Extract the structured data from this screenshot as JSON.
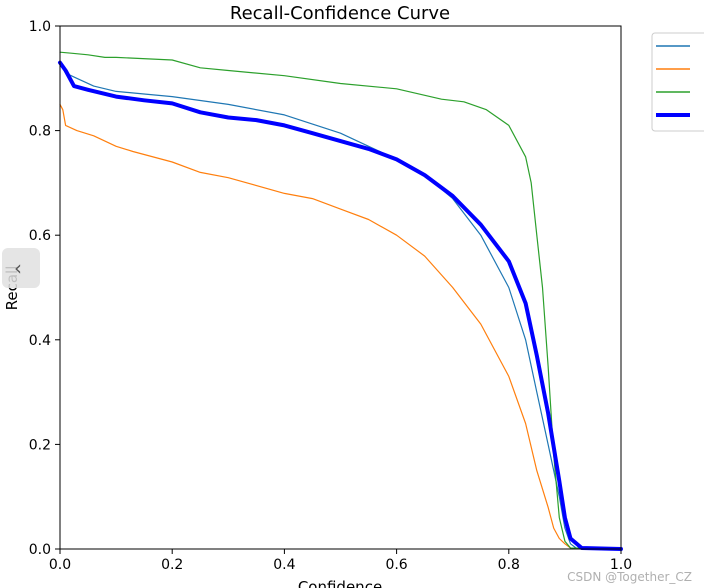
{
  "chart_data": {
    "type": "line",
    "title": "Recall-Confidence Curve",
    "xlabel": "Confidence",
    "ylabel": "Recall",
    "xlim": [
      0.0,
      1.0
    ],
    "ylim": [
      0.0,
      1.0
    ],
    "xticks": [
      "0.0",
      "0.2",
      "0.4",
      "0.6",
      "0.8",
      "1.0"
    ],
    "yticks": [
      "0.0",
      "0.2",
      "0.4",
      "0.6",
      "0.8",
      "1.0"
    ],
    "grid": false,
    "legend_position": "outside-top-right",
    "series": [
      {
        "color": "#1f77b4",
        "width": 1.2,
        "x": [
          0.0,
          0.01,
          0.03,
          0.06,
          0.1,
          0.15,
          0.2,
          0.3,
          0.4,
          0.5,
          0.55,
          0.6,
          0.65,
          0.7,
          0.75,
          0.8,
          0.83,
          0.85,
          0.87,
          0.89,
          0.9,
          0.91,
          0.92,
          1.0
        ],
        "y": [
          0.93,
          0.91,
          0.9,
          0.885,
          0.875,
          0.87,
          0.865,
          0.85,
          0.83,
          0.795,
          0.77,
          0.745,
          0.715,
          0.67,
          0.6,
          0.5,
          0.4,
          0.3,
          0.2,
          0.1,
          0.04,
          0.01,
          0.002,
          0.0
        ]
      },
      {
        "color": "#ff7f0e",
        "width": 1.2,
        "x": [
          0.0,
          0.005,
          0.01,
          0.03,
          0.06,
          0.1,
          0.13,
          0.2,
          0.25,
          0.3,
          0.4,
          0.45,
          0.5,
          0.55,
          0.6,
          0.65,
          0.7,
          0.75,
          0.8,
          0.83,
          0.85,
          0.87,
          0.88,
          0.89,
          0.9,
          0.91,
          1.0
        ],
        "y": [
          0.85,
          0.84,
          0.81,
          0.8,
          0.79,
          0.77,
          0.76,
          0.74,
          0.72,
          0.71,
          0.68,
          0.67,
          0.65,
          0.63,
          0.6,
          0.56,
          0.5,
          0.43,
          0.33,
          0.24,
          0.15,
          0.08,
          0.04,
          0.02,
          0.01,
          0.002,
          0.0
        ]
      },
      {
        "color": "#2ca02c",
        "width": 1.2,
        "x": [
          0.0,
          0.02,
          0.05,
          0.08,
          0.1,
          0.2,
          0.25,
          0.3,
          0.4,
          0.5,
          0.6,
          0.68,
          0.72,
          0.76,
          0.8,
          0.83,
          0.84,
          0.85,
          0.86,
          0.87,
          0.88,
          0.89,
          0.9,
          0.91,
          1.0
        ],
        "y": [
          0.95,
          0.948,
          0.945,
          0.94,
          0.94,
          0.935,
          0.92,
          0.915,
          0.905,
          0.89,
          0.88,
          0.86,
          0.855,
          0.84,
          0.81,
          0.75,
          0.7,
          0.6,
          0.5,
          0.35,
          0.18,
          0.06,
          0.015,
          0.002,
          0.0
        ]
      },
      {
        "color": "#0000ff",
        "width": 4,
        "x": [
          0.0,
          0.01,
          0.025,
          0.05,
          0.1,
          0.15,
          0.2,
          0.25,
          0.3,
          0.35,
          0.4,
          0.45,
          0.5,
          0.55,
          0.6,
          0.65,
          0.7,
          0.75,
          0.8,
          0.83,
          0.85,
          0.87,
          0.89,
          0.9,
          0.91,
          0.93,
          1.0
        ],
        "y": [
          0.93,
          0.915,
          0.885,
          0.878,
          0.865,
          0.858,
          0.852,
          0.835,
          0.825,
          0.82,
          0.81,
          0.795,
          0.78,
          0.765,
          0.745,
          0.715,
          0.675,
          0.62,
          0.55,
          0.47,
          0.37,
          0.26,
          0.13,
          0.06,
          0.02,
          0.002,
          0.0
        ]
      }
    ]
  },
  "ui": {
    "nav_handle_glyph": "‹",
    "watermark": "CSDN @Together_CZ"
  }
}
